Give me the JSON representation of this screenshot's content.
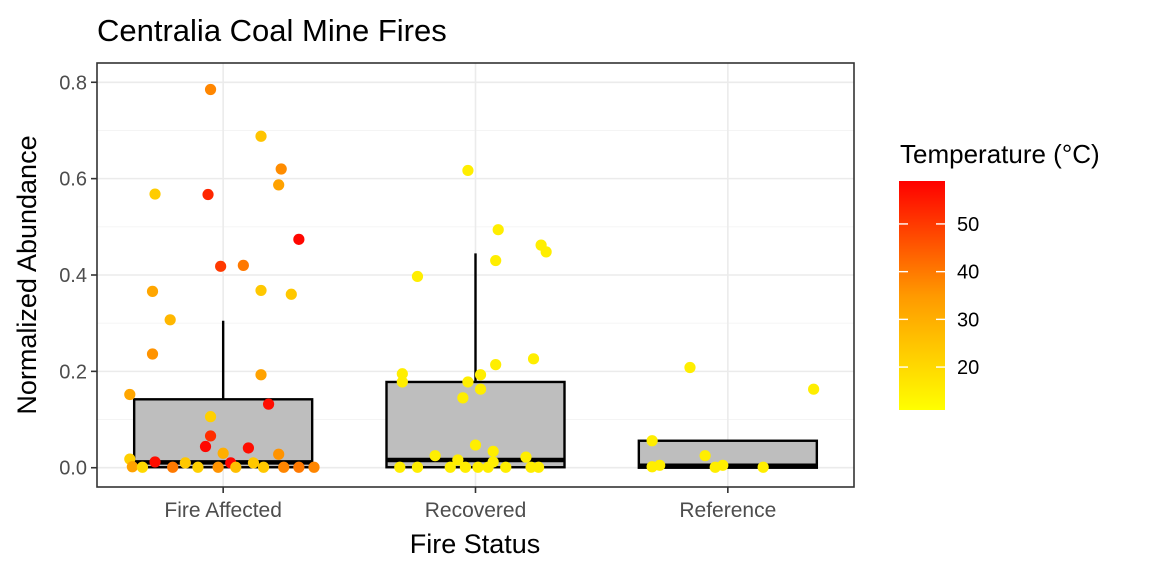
{
  "chart_data": {
    "type": "box",
    "title": "Centralia Coal Mine Fires",
    "xlabel": "Fire Status",
    "ylabel": "Normalized Abundance",
    "categories": [
      "Fire Affected",
      "Recovered",
      "Reference"
    ],
    "ylim": [
      -0.04,
      0.84
    ],
    "yticks": [
      0.0,
      0.2,
      0.4,
      0.6,
      0.8
    ],
    "ytick_labels": [
      "0.0",
      "0.2",
      "0.4",
      "0.6",
      "0.8"
    ],
    "grid": true,
    "boxes": [
      {
        "category": "Fire Affected",
        "min": 0.0,
        "q1": 0.001,
        "median": 0.011,
        "q3": 0.142,
        "max": 0.305
      },
      {
        "category": "Recovered",
        "min": 0.0,
        "q1": 0.001,
        "median": 0.016,
        "q3": 0.178,
        "max": 0.445
      },
      {
        "category": "Reference",
        "min": 0.0,
        "q1": 0.0,
        "median": 0.004,
        "q3": 0.056,
        "max": 0.056
      }
    ],
    "points": [
      {
        "category": "Fire Affected",
        "offset": -0.05,
        "value": 0.785,
        "temp": 38
      },
      {
        "category": "Fire Affected",
        "offset": 0.15,
        "value": 0.688,
        "temp": 25
      },
      {
        "category": "Fire Affected",
        "offset": 0.23,
        "value": 0.62,
        "temp": 37
      },
      {
        "category": "Fire Affected",
        "offset": 0.22,
        "value": 0.587,
        "temp": 33
      },
      {
        "category": "Fire Affected",
        "offset": -0.27,
        "value": 0.568,
        "temp": 23
      },
      {
        "category": "Fire Affected",
        "offset": -0.06,
        "value": 0.567,
        "temp": 53
      },
      {
        "category": "Fire Affected",
        "offset": 0.3,
        "value": 0.474,
        "temp": 58
      },
      {
        "category": "Fire Affected",
        "offset": 0.08,
        "value": 0.42,
        "temp": 40
      },
      {
        "category": "Fire Affected",
        "offset": -0.01,
        "value": 0.418,
        "temp": 50
      },
      {
        "category": "Fire Affected",
        "offset": 0.15,
        "value": 0.368,
        "temp": 24
      },
      {
        "category": "Fire Affected",
        "offset": -0.28,
        "value": 0.366,
        "temp": 32
      },
      {
        "category": "Fire Affected",
        "offset": 0.27,
        "value": 0.36,
        "temp": 24
      },
      {
        "category": "Fire Affected",
        "offset": -0.21,
        "value": 0.307,
        "temp": 28
      },
      {
        "category": "Fire Affected",
        "offset": -0.28,
        "value": 0.236,
        "temp": 36
      },
      {
        "category": "Fire Affected",
        "offset": 0.15,
        "value": 0.193,
        "temp": 33
      },
      {
        "category": "Fire Affected",
        "offset": -0.37,
        "value": 0.152,
        "temp": 32
      },
      {
        "category": "Fire Affected",
        "offset": 0.18,
        "value": 0.132,
        "temp": 57
      },
      {
        "category": "Fire Affected",
        "offset": -0.05,
        "value": 0.106,
        "temp": 22
      },
      {
        "category": "Fire Affected",
        "offset": -0.05,
        "value": 0.066,
        "temp": 52
      },
      {
        "category": "Fire Affected",
        "offset": -0.07,
        "value": 0.044,
        "temp": 58
      },
      {
        "category": "Fire Affected",
        "offset": 0.1,
        "value": 0.041,
        "temp": 57
      },
      {
        "category": "Fire Affected",
        "offset": 0.22,
        "value": 0.028,
        "temp": 36
      },
      {
        "category": "Fire Affected",
        "offset": 0.0,
        "value": 0.03,
        "temp": 30
      },
      {
        "category": "Fire Affected",
        "offset": -0.37,
        "value": 0.018,
        "temp": 22
      },
      {
        "category": "Fire Affected",
        "offset": -0.27,
        "value": 0.012,
        "temp": 57
      },
      {
        "category": "Fire Affected",
        "offset": 0.03,
        "value": 0.01,
        "temp": 58
      },
      {
        "category": "Fire Affected",
        "offset": 0.12,
        "value": 0.01,
        "temp": 24
      },
      {
        "category": "Fire Affected",
        "offset": -0.15,
        "value": 0.01,
        "temp": 24
      },
      {
        "category": "Fire Affected",
        "offset": -0.36,
        "value": 0.002,
        "temp": 33
      },
      {
        "category": "Fire Affected",
        "offset": -0.32,
        "value": 0.001,
        "temp": 20
      },
      {
        "category": "Fire Affected",
        "offset": -0.2,
        "value": 0.001,
        "temp": 40
      },
      {
        "category": "Fire Affected",
        "offset": -0.1,
        "value": 0.001,
        "temp": 22
      },
      {
        "category": "Fire Affected",
        "offset": -0.02,
        "value": 0.001,
        "temp": 36
      },
      {
        "category": "Fire Affected",
        "offset": 0.05,
        "value": 0.001,
        "temp": 26
      },
      {
        "category": "Fire Affected",
        "offset": 0.16,
        "value": 0.001,
        "temp": 24
      },
      {
        "category": "Fire Affected",
        "offset": 0.24,
        "value": 0.001,
        "temp": 38
      },
      {
        "category": "Fire Affected",
        "offset": 0.3,
        "value": 0.001,
        "temp": 40
      },
      {
        "category": "Fire Affected",
        "offset": 0.36,
        "value": 0.001,
        "temp": 38
      },
      {
        "category": "Recovered",
        "offset": -0.03,
        "value": 0.617,
        "temp": 15
      },
      {
        "category": "Recovered",
        "offset": 0.09,
        "value": 0.494,
        "temp": 15
      },
      {
        "category": "Recovered",
        "offset": 0.26,
        "value": 0.462,
        "temp": 15
      },
      {
        "category": "Recovered",
        "offset": 0.28,
        "value": 0.448,
        "temp": 15
      },
      {
        "category": "Recovered",
        "offset": 0.08,
        "value": 0.43,
        "temp": 15
      },
      {
        "category": "Recovered",
        "offset": -0.23,
        "value": 0.397,
        "temp": 15
      },
      {
        "category": "Recovered",
        "offset": 0.23,
        "value": 0.226,
        "temp": 15
      },
      {
        "category": "Recovered",
        "offset": 0.08,
        "value": 0.214,
        "temp": 15
      },
      {
        "category": "Recovered",
        "offset": -0.29,
        "value": 0.195,
        "temp": 15
      },
      {
        "category": "Recovered",
        "offset": 0.02,
        "value": 0.193,
        "temp": 15
      },
      {
        "category": "Recovered",
        "offset": -0.29,
        "value": 0.178,
        "temp": 15
      },
      {
        "category": "Recovered",
        "offset": -0.03,
        "value": 0.178,
        "temp": 15
      },
      {
        "category": "Recovered",
        "offset": 0.02,
        "value": 0.163,
        "temp": 15
      },
      {
        "category": "Recovered",
        "offset": -0.05,
        "value": 0.145,
        "temp": 15
      },
      {
        "category": "Recovered",
        "offset": 0.0,
        "value": 0.047,
        "temp": 15
      },
      {
        "category": "Recovered",
        "offset": 0.07,
        "value": 0.034,
        "temp": 15
      },
      {
        "category": "Recovered",
        "offset": -0.16,
        "value": 0.025,
        "temp": 15
      },
      {
        "category": "Recovered",
        "offset": 0.2,
        "value": 0.022,
        "temp": 15
      },
      {
        "category": "Recovered",
        "offset": -0.07,
        "value": 0.016,
        "temp": 15
      },
      {
        "category": "Recovered",
        "offset": 0.07,
        "value": 0.012,
        "temp": 15
      },
      {
        "category": "Recovered",
        "offset": -0.3,
        "value": 0.001,
        "temp": 15
      },
      {
        "category": "Recovered",
        "offset": -0.23,
        "value": 0.001,
        "temp": 15
      },
      {
        "category": "Recovered",
        "offset": -0.1,
        "value": 0.001,
        "temp": 15
      },
      {
        "category": "Recovered",
        "offset": -0.04,
        "value": 0.001,
        "temp": 15
      },
      {
        "category": "Recovered",
        "offset": 0.01,
        "value": 0.001,
        "temp": 15
      },
      {
        "category": "Recovered",
        "offset": 0.05,
        "value": 0.001,
        "temp": 15
      },
      {
        "category": "Recovered",
        "offset": 0.12,
        "value": 0.001,
        "temp": 15
      },
      {
        "category": "Recovered",
        "offset": 0.22,
        "value": 0.001,
        "temp": 15
      },
      {
        "category": "Recovered",
        "offset": 0.25,
        "value": 0.001,
        "temp": 15
      },
      {
        "category": "Reference",
        "offset": -0.15,
        "value": 0.208,
        "temp": 15
      },
      {
        "category": "Reference",
        "offset": 0.34,
        "value": 0.163,
        "temp": 15
      },
      {
        "category": "Reference",
        "offset": -0.3,
        "value": 0.056,
        "temp": 15
      },
      {
        "category": "Reference",
        "offset": -0.09,
        "value": 0.025,
        "temp": 15
      },
      {
        "category": "Reference",
        "offset": -0.27,
        "value": 0.005,
        "temp": 15
      },
      {
        "category": "Reference",
        "offset": -0.02,
        "value": 0.005,
        "temp": 15
      },
      {
        "category": "Reference",
        "offset": -0.3,
        "value": 0.002,
        "temp": 15
      },
      {
        "category": "Reference",
        "offset": -0.05,
        "value": 0.001,
        "temp": 15
      },
      {
        "category": "Reference",
        "offset": 0.14,
        "value": 0.001,
        "temp": 15
      }
    ],
    "legend": {
      "title": "Temperature (°C)",
      "placement": "right",
      "range": [
        11,
        59
      ],
      "ticks": [
        20,
        30,
        40,
        50
      ],
      "tick_labels": [
        "20",
        "30",
        "40",
        "50"
      ],
      "colors": {
        "low": "#ffff00",
        "high": "#ff0000"
      }
    },
    "box_fill": "#bebebe"
  }
}
